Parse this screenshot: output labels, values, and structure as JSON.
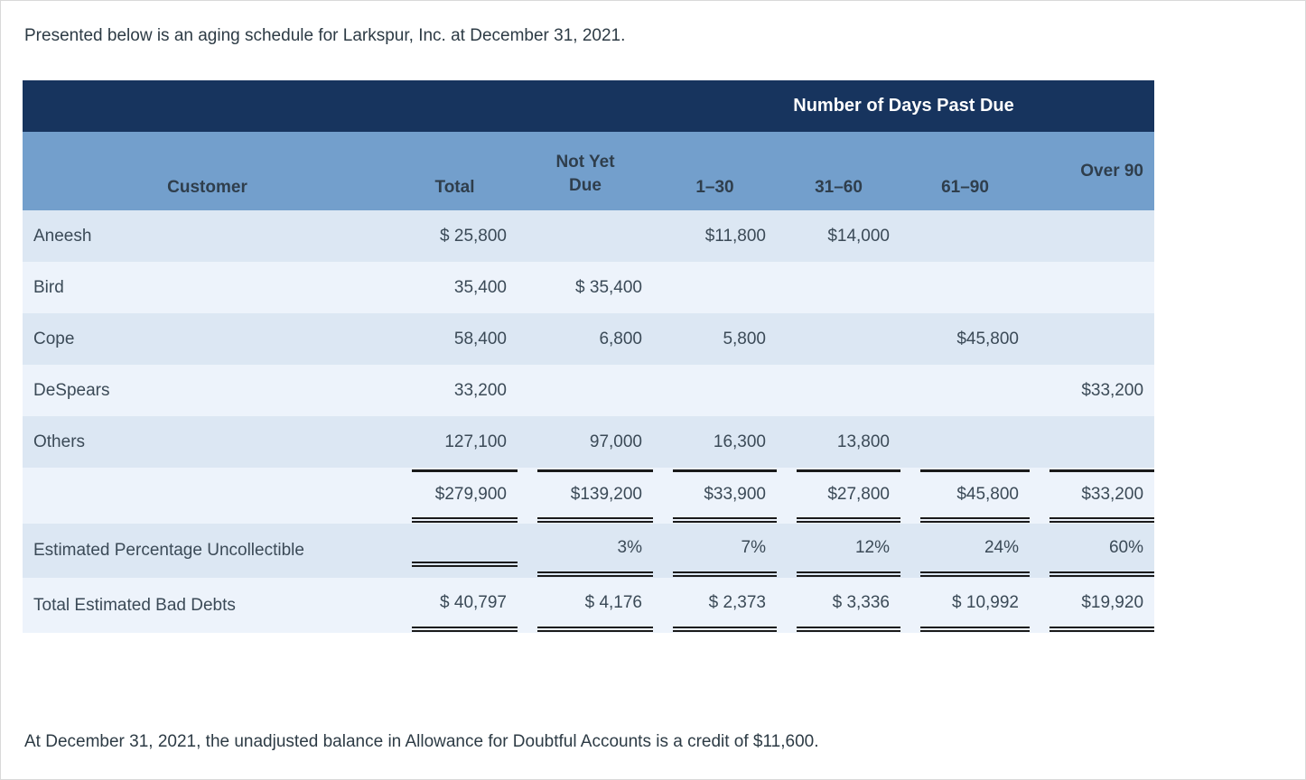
{
  "intro": {
    "text": "Presented below is an aging schedule for Larkspur, Inc. at December 31, 2021."
  },
  "footer": {
    "text": "At December 31, 2021, the unadjusted balance in Allowance for Doubtful Accounts is a credit of $11,600."
  },
  "aging_table": {
    "banner": "Number of Days Past Due",
    "headers": {
      "customer": "Customer",
      "total": "Total",
      "not_yet_due": "Not Yet Due",
      "d1_30": "1–30",
      "d31_60": "31–60",
      "d61_90": "61–90",
      "over_90": "Over 90"
    },
    "rows": [
      {
        "customer": "Aneesh",
        "cells": [
          "$ 25,800",
          "",
          "$11,800",
          "$14,000",
          "",
          ""
        ]
      },
      {
        "customer": "Bird",
        "cells": [
          "35,400",
          "$ 35,400",
          "",
          "",
          "",
          ""
        ]
      },
      {
        "customer": "Cope",
        "cells": [
          "58,400",
          "6,800",
          "5,800",
          "",
          "$45,800",
          ""
        ]
      },
      {
        "customer": "DeSpears",
        "cells": [
          "33,200",
          "",
          "",
          "",
          "",
          "$33,200"
        ]
      },
      {
        "customer": "Others",
        "cells": [
          "127,100",
          "97,000",
          "16,300",
          "13,800",
          "",
          ""
        ]
      }
    ],
    "totals_row": {
      "customer": "",
      "cells": [
        "$279,900",
        "$139,200",
        "$33,900",
        "$27,800",
        "$45,800",
        "$33,200"
      ]
    },
    "percent_row": {
      "customer": "Estimated Percentage Uncollectible",
      "cells": [
        "",
        "3%",
        "7%",
        "12%",
        "24%",
        "60%"
      ]
    },
    "bad_debts_row": {
      "customer": "Total Estimated Bad Debts",
      "cells": [
        "$ 40,797",
        "$ 4,176",
        "$ 2,373",
        "$ 3,336",
        "$ 10,992",
        "$19,920"
      ]
    }
  },
  "colors": {
    "banner_bg": "#17345e",
    "header_bg": "#739fcc",
    "row_stripe_dark": "#dce7f3",
    "row_stripe_light": "#edf3fb",
    "body_text": "#3b4a57",
    "rule_line": "#1a1a1a"
  }
}
